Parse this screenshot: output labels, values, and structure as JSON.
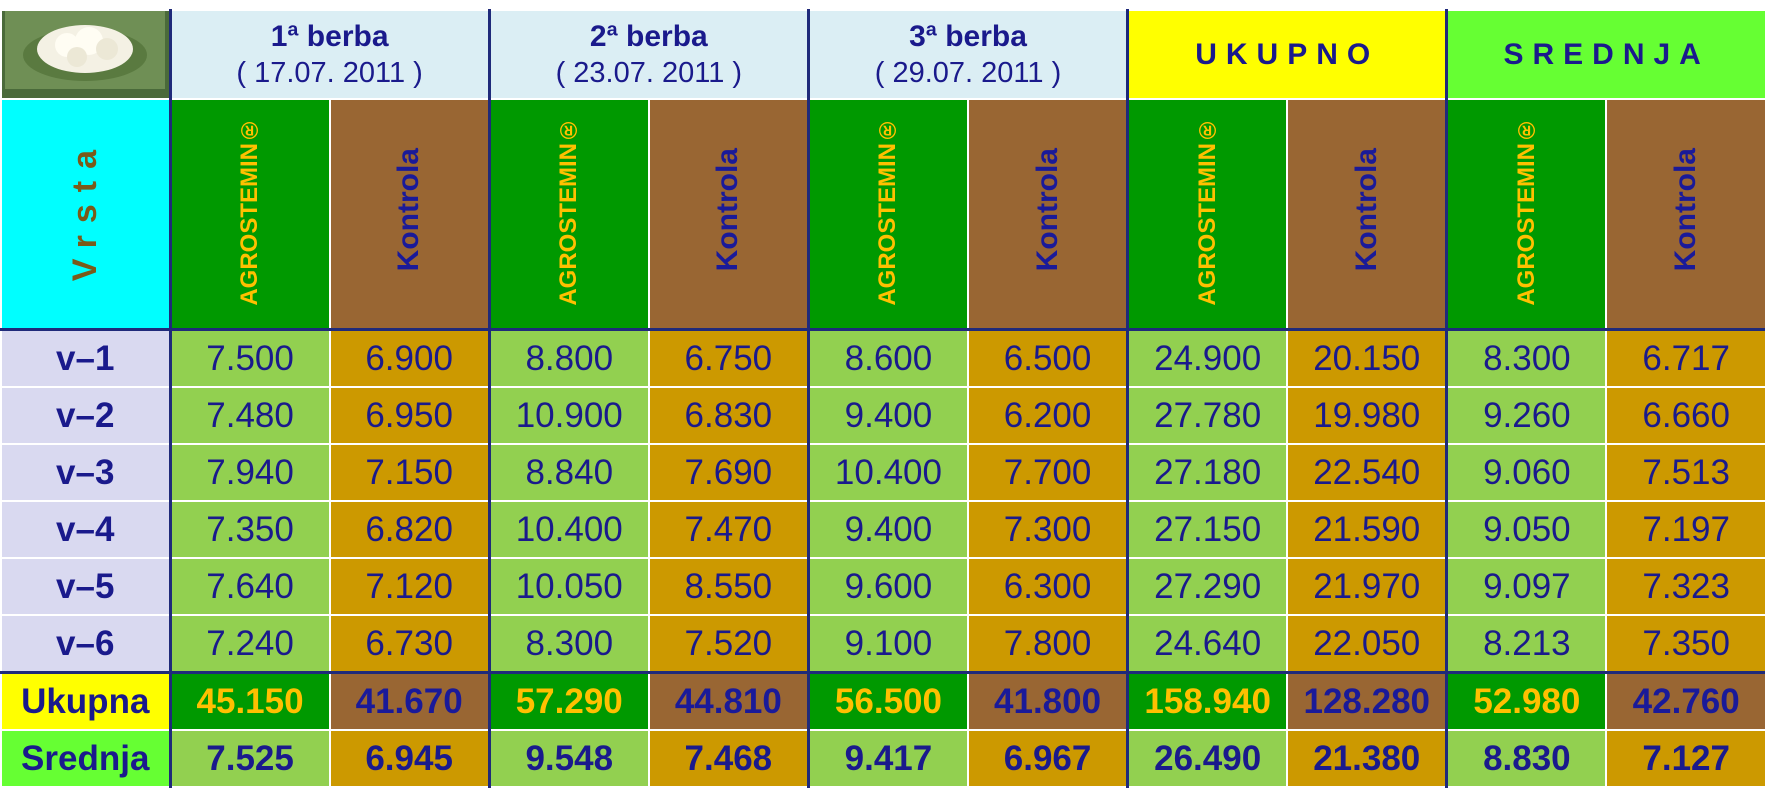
{
  "header": {
    "groups": [
      {
        "title": "1ª berba",
        "date": "( 17.07. 2011 )"
      },
      {
        "title": "2ª berba",
        "date": "( 23.07. 2011 )"
      },
      {
        "title": "3ª berba",
        "date": "( 29.07. 2011 )"
      },
      {
        "title": "UKUPNO"
      },
      {
        "title": "SREDNJA"
      }
    ],
    "row_header": "Vrsta",
    "columns": [
      "AGROSTEMIN®",
      "Kontrola",
      "AGROSTEMIN®",
      "Kontrola",
      "AGROSTEMIN®",
      "Kontrola",
      "AGROSTEMIN®",
      "Kontrola",
      "AGROSTEMIN®",
      "Kontrola"
    ]
  },
  "table": {
    "rows": [
      {
        "label": "v–1",
        "cells": [
          "7.500",
          "6.900",
          "8.800",
          "6.750",
          "8.600",
          "6.500",
          "24.900",
          "20.150",
          "8.300",
          "6.717"
        ]
      },
      {
        "label": "v–2",
        "cells": [
          "7.480",
          "6.950",
          "10.900",
          "6.830",
          "9.400",
          "6.200",
          "27.780",
          "19.980",
          "9.260",
          "6.660"
        ]
      },
      {
        "label": "v–3",
        "cells": [
          "7.940",
          "7.150",
          "8.840",
          "7.690",
          "10.400",
          "7.700",
          "27.180",
          "22.540",
          "9.060",
          "7.513"
        ]
      },
      {
        "label": "v–4",
        "cells": [
          "7.350",
          "6.820",
          "10.400",
          "7.470",
          "9.400",
          "7.300",
          "27.150",
          "21.590",
          "9.050",
          "7.197"
        ]
      },
      {
        "label": "v–5",
        "cells": [
          "7.640",
          "7.120",
          "10.050",
          "8.550",
          "9.600",
          "6.300",
          "27.290",
          "21.970",
          "9.097",
          "7.323"
        ]
      },
      {
        "label": "v–6",
        "cells": [
          "7.240",
          "6.730",
          "8.300",
          "7.520",
          "9.100",
          "7.800",
          "24.640",
          "22.050",
          "8.213",
          "7.350"
        ]
      },
      {
        "label": "Ukupna",
        "cells": [
          "45.150",
          "41.670",
          "57.290",
          "44.810",
          "56.500",
          "41.800",
          "158.940",
          "128.280",
          "52.980",
          "42.760"
        ]
      },
      {
        "label": "Srednja",
        "cells": [
          "7.525",
          "6.945",
          "9.548",
          "7.468",
          "9.417",
          "6.967",
          "26.490",
          "21.380",
          "8.830",
          "7.127"
        ]
      }
    ]
  }
}
